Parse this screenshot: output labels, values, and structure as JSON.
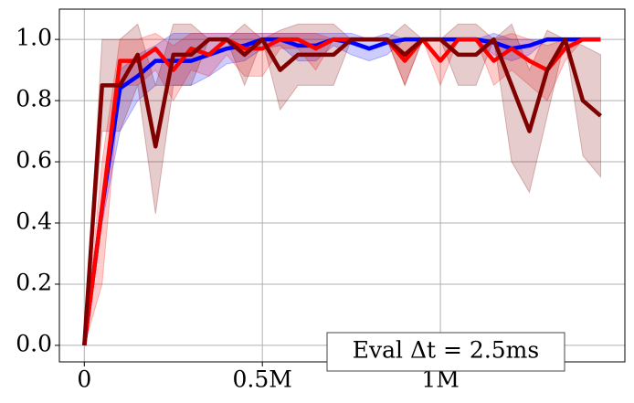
{
  "chart_data": {
    "type": "line",
    "annotation": "Eval Δt = 2.5ms",
    "x": [
      0,
      50000,
      100000,
      150000,
      200000,
      250000,
      300000,
      350000,
      400000,
      450000,
      500000,
      550000,
      600000,
      650000,
      700000,
      750000,
      800000,
      850000,
      900000,
      950000,
      1000000,
      1050000,
      1100000,
      1150000,
      1200000,
      1250000,
      1300000,
      1350000,
      1400000,
      1450000
    ],
    "series": [
      {
        "color": "#0000ff",
        "values": [
          0,
          0.45,
          0.84,
          0.88,
          0.93,
          0.93,
          0.93,
          0.95,
          0.97,
          0.98,
          1.0,
          1.0,
          0.98,
          0.98,
          1.0,
          0.99,
          0.97,
          0.99,
          1.0,
          1.0,
          1.0,
          1.0,
          1.0,
          0.99,
          0.97,
          0.98,
          1.0,
          1.0,
          1.0,
          1.0
        ],
        "lower": [
          0,
          0.4,
          0.7,
          0.8,
          0.85,
          0.85,
          0.85,
          0.88,
          0.92,
          0.93,
          0.97,
          0.98,
          0.93,
          0.93,
          0.98,
          0.95,
          0.93,
          0.95,
          1,
          1,
          1,
          1,
          1,
          0.95,
          0.93,
          0.95,
          1,
          1,
          1,
          1
        ],
        "upper": [
          0,
          0.5,
          0.9,
          0.95,
          0.98,
          1.02,
          1.02,
          1.02,
          1.02,
          1.02,
          1.02,
          1.02,
          1.02,
          1.02,
          1.02,
          1.02,
          1.0,
          1.02,
          1,
          1,
          1,
          1,
          1,
          1.02,
          1.0,
          1.0,
          1,
          1,
          1,
          1
        ]
      },
      {
        "color": "#ff0000",
        "values": [
          0,
          0.45,
          0.93,
          0.93,
          0.97,
          0.9,
          0.97,
          0.95,
          1.0,
          0.97,
          0.97,
          1.0,
          1.0,
          0.97,
          1.0,
          1.0,
          1.0,
          1.0,
          0.93,
          1.0,
          0.93,
          1.0,
          1.0,
          0.93,
          0.97,
          0.93,
          0.9,
          0.97,
          1.0,
          1.0
        ],
        "lower": [
          0,
          0.2,
          0.85,
          0.85,
          0.9,
          0.8,
          0.9,
          0.88,
          0.95,
          0.88,
          0.88,
          0.97,
          0.97,
          0.9,
          1,
          1,
          1,
          1,
          0.85,
          1,
          0.85,
          1,
          1,
          0.85,
          0.9,
          0.85,
          0.8,
          0.93,
          1,
          1
        ],
        "upper": [
          0,
          0.6,
          1.0,
          1.0,
          1.02,
          0.98,
          1.02,
          1.02,
          1.02,
          1.02,
          1.02,
          1.02,
          1.02,
          1.02,
          1,
          1,
          1,
          1,
          1.0,
          1,
          1.0,
          1,
          1,
          1.0,
          1.02,
          1.0,
          0.98,
          1.0,
          1,
          1
        ]
      },
      {
        "color": "#800000",
        "values": [
          0,
          0.85,
          0.85,
          0.95,
          0.65,
          0.95,
          0.95,
          1.0,
          1.0,
          0.95,
          1.0,
          0.9,
          0.95,
          0.95,
          0.95,
          1.0,
          1.0,
          1.0,
          0.95,
          1.0,
          1.0,
          0.95,
          0.95,
          1.0,
          0.85,
          0.7,
          0.9,
          1.0,
          0.8,
          0.75
        ],
        "lower": [
          0,
          0.7,
          0.7,
          0.85,
          0.43,
          0.85,
          0.85,
          1.0,
          1.0,
          0.85,
          1.0,
          0.77,
          0.85,
          0.85,
          0.85,
          1,
          1,
          1,
          0.85,
          1,
          1,
          0.85,
          0.85,
          1,
          0.6,
          0.5,
          0.75,
          1,
          0.62,
          0.55
        ],
        "upper": [
          0,
          1.0,
          1.0,
          1.05,
          0.85,
          1.05,
          1.05,
          1.0,
          1.0,
          1.05,
          1.0,
          1.03,
          1.05,
          1.05,
          1.05,
          1,
          1,
          1,
          1.05,
          1,
          1,
          1.05,
          1.05,
          1,
          1.05,
          0.9,
          1.03,
          1,
          0.98,
          0.95
        ]
      }
    ],
    "xlim": [
      -70000,
      1518000
    ],
    "ylim": [
      -0.054,
      1.099
    ],
    "xticks": [
      0,
      {
        "value": 500000,
        "label": "0.5M"
      },
      {
        "value": 1000000,
        "label": "1M"
      }
    ],
    "yticks": [
      {
        "value": 0,
        "label": "0.0"
      },
      0.2,
      0.4,
      0.6,
      0.8,
      {
        "value": 1,
        "label": "1.0"
      }
    ],
    "grid": true
  }
}
